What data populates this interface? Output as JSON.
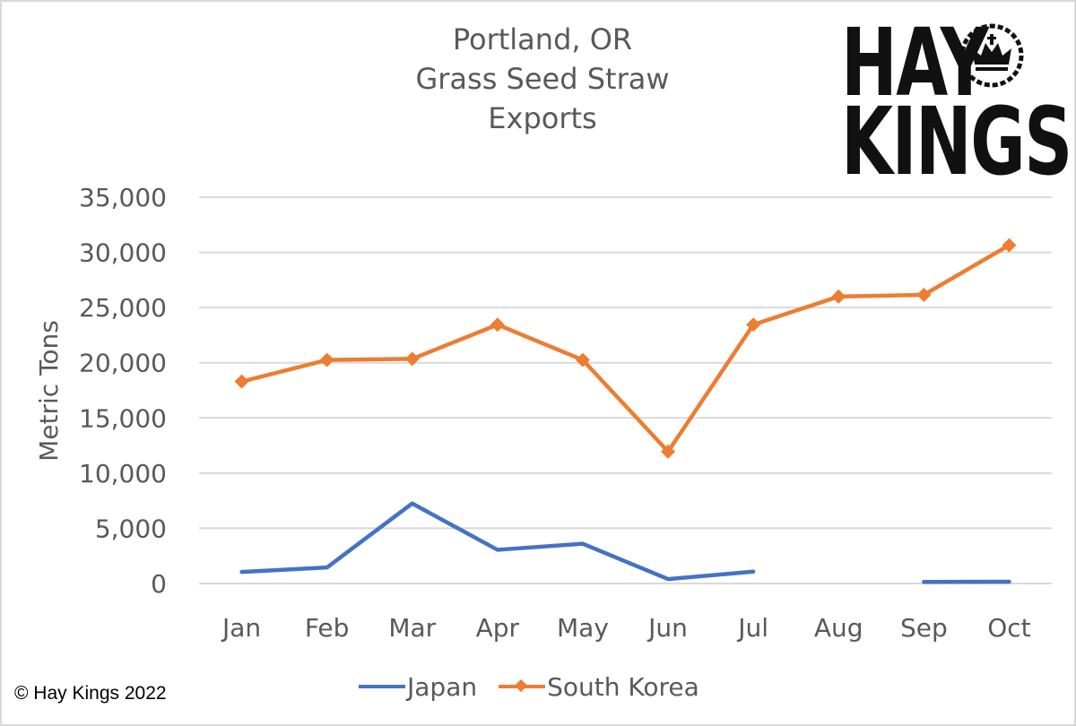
{
  "title": {
    "lines": [
      "Portland, OR",
      "Grass Seed Straw",
      "Exports"
    ]
  },
  "logo": {
    "line1": "HAY",
    "line2": "KINGS",
    "icon": "crown-icon"
  },
  "copyright": "© Hay Kings 2022",
  "colors": {
    "japan": "#4472c4",
    "south_korea": "#ed7d31",
    "gridline": "#d9d9d9",
    "text": "#595959"
  },
  "legend": {
    "items": [
      {
        "label": "Japan",
        "color": "#4472c4",
        "marker": false
      },
      {
        "label": "South Korea",
        "color": "#ed7d31",
        "marker": true
      }
    ]
  },
  "chart_data": {
    "type": "line",
    "title": "Portland, OR Grass Seed Straw Exports",
    "xlabel": "",
    "ylabel": "Metric Tons",
    "categories": [
      "Jan",
      "Feb",
      "Mar",
      "Apr",
      "May",
      "Jun",
      "Jul",
      "Aug",
      "Sep",
      "Oct"
    ],
    "ylim": [
      0,
      35000
    ],
    "yticks": [
      0,
      5000,
      10000,
      15000,
      20000,
      25000,
      30000,
      35000
    ],
    "ytick_labels": [
      "0",
      "5,000",
      "10,000",
      "15,000",
      "20,000",
      "25,000",
      "30,000",
      "35,000"
    ],
    "grid": true,
    "legend_position": "bottom",
    "series": [
      {
        "name": "Japan",
        "color": "#4472c4",
        "marker": "none",
        "values": [
          1050,
          1450,
          7250,
          3050,
          3600,
          400,
          1080,
          null,
          140,
          160
        ]
      },
      {
        "name": "South Korea",
        "color": "#ed7d31",
        "marker": "diamond",
        "values": [
          18300,
          20250,
          20350,
          23450,
          20250,
          11950,
          23450,
          26000,
          26150,
          30650
        ]
      }
    ]
  }
}
